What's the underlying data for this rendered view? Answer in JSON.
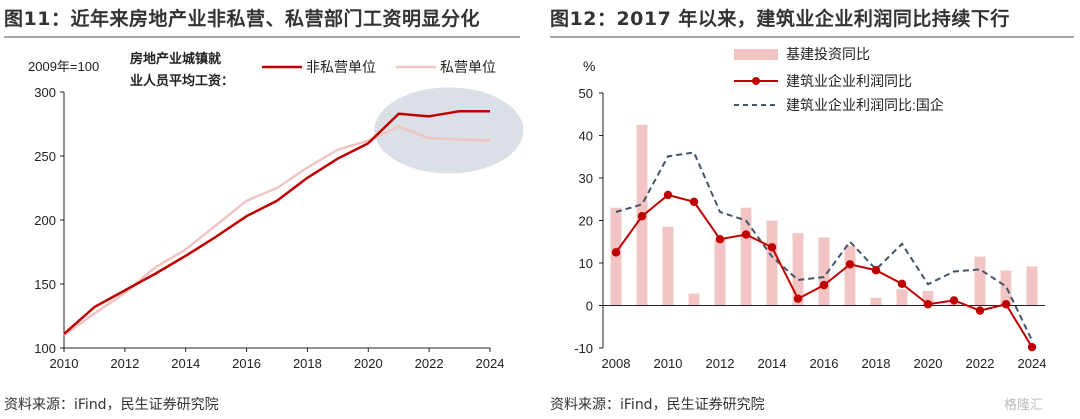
{
  "left": {
    "title": "图11：近年来房地产业非私营、私营部门工资明显分化",
    "source": "资料来源：iFind，民生证券研究院"
  },
  "right": {
    "title": "图12：2017 年以来，建筑业企业利润同比持续下行",
    "source": "资料来源：iFind，民生证券研究院"
  },
  "watermark": "格隆汇",
  "chart_data": [
    {
      "type": "line",
      "title": "",
      "base_note": "2009年=100",
      "legend_header": [
        "房地产业城镇就",
        "业人员平均工资："
      ],
      "legend_position": "top",
      "x": [
        2010,
        2011,
        2012,
        2013,
        2014,
        2015,
        2016,
        2017,
        2018,
        2019,
        2020,
        2021,
        2022,
        2023,
        2024
      ],
      "x_ticks": [
        2010,
        2012,
        2014,
        2016,
        2018,
        2020,
        2022,
        2024
      ],
      "ylim": [
        100,
        300
      ],
      "y_ticks": [
        100,
        150,
        200,
        250,
        300
      ],
      "grid": false,
      "highlight": {
        "x_from": 2020.2,
        "x_to": 2025.1,
        "y_center": 270
      },
      "series": [
        {
          "name": "非私营单位",
          "color": "#c00000",
          "values": [
            111,
            132,
            145,
            158,
            172,
            187,
            203,
            215,
            233,
            248,
            260,
            283,
            281,
            285,
            285
          ]
        },
        {
          "name": "私营单位",
          "color": "#f1c4c4",
          "values": [
            110,
            127,
            143,
            163,
            177,
            196,
            215,
            225,
            241,
            255,
            262,
            273,
            264,
            263,
            262
          ]
        }
      ]
    },
    {
      "type": "bar+line",
      "title": "",
      "ylabel": "%",
      "legend_position": "top",
      "x": [
        2008,
        2009,
        2010,
        2011,
        2012,
        2013,
        2014,
        2015,
        2016,
        2017,
        2018,
        2019,
        2020,
        2021,
        2022,
        2023,
        2024
      ],
      "x_ticks": [
        2008,
        2010,
        2012,
        2014,
        2016,
        2018,
        2020,
        2022,
        2024
      ],
      "ylim": [
        -10,
        50
      ],
      "y_ticks": [
        -10,
        0,
        10,
        20,
        30,
        40,
        50
      ],
      "grid": false,
      "series": [
        {
          "name": "基建投资同比",
          "kind": "bar",
          "color": "#f2c4c4",
          "values": [
            23.0,
            42.5,
            18.5,
            2.8,
            15.7,
            23.0,
            20.0,
            17.0,
            16.0,
            14.0,
            1.8,
            3.8,
            3.4,
            0.4,
            11.5,
            8.2,
            9.2
          ]
        },
        {
          "name": "建筑业企业利润同比",
          "kind": "line-marker",
          "color": "#c00000",
          "values": [
            12.5,
            21.0,
            26.0,
            24.4,
            15.6,
            16.7,
            13.7,
            1.6,
            4.8,
            9.7,
            8.3,
            5.1,
            0.3,
            1.2,
            -1.2,
            0.3,
            -9.8
          ]
        },
        {
          "name": "建筑业企业利润同比:国企",
          "kind": "dashed",
          "color": "#44546a",
          "values": [
            22.0,
            23.8,
            35.1,
            36.0,
            22.0,
            20.0,
            11.5,
            6.0,
            6.7,
            15.0,
            8.5,
            14.5,
            5.0,
            8.0,
            8.5,
            4.5,
            -8.2
          ]
        }
      ]
    }
  ]
}
